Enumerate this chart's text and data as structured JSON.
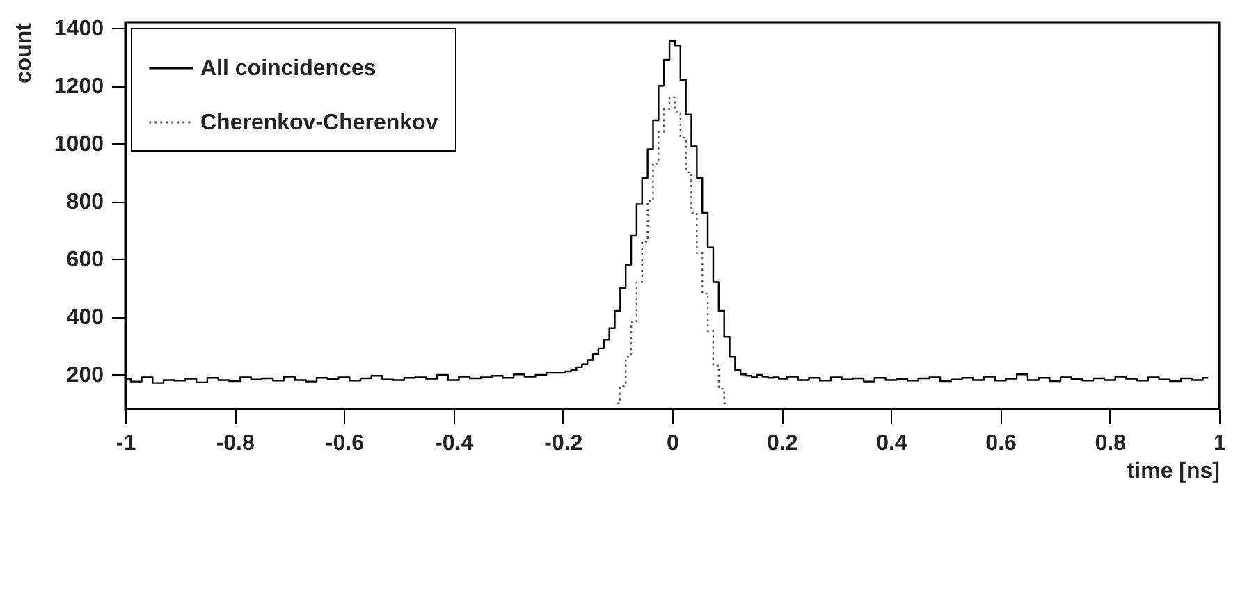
{
  "chart_data": {
    "type": "step",
    "xlabel": "time [ns]",
    "ylabel": "count",
    "xlim": [
      -1,
      1
    ],
    "ylim": [
      80,
      1420
    ],
    "xticks": [
      -1,
      -0.8,
      -0.6,
      -0.4,
      -0.2,
      0,
      0.2,
      0.4,
      0.6,
      0.8,
      1
    ],
    "yticks": [
      200,
      400,
      600,
      800,
      1000,
      1200,
      1400
    ],
    "grid": false,
    "legend": "top left",
    "marker": "none",
    "series": [
      {
        "name": "All coincidences",
        "color": "#000000",
        "line_style": "solid",
        "x": [
          -1,
          -0.98,
          -0.96,
          -0.94,
          -0.92,
          -0.9,
          -0.88,
          -0.86,
          -0.84,
          -0.82,
          -0.8,
          -0.78,
          -0.76,
          -0.74,
          -0.72,
          -0.7,
          -0.68,
          -0.66,
          -0.64,
          -0.62,
          -0.6,
          -0.58,
          -0.56,
          -0.54,
          -0.52,
          -0.5,
          -0.48,
          -0.46,
          -0.44,
          -0.42,
          -0.4,
          -0.38,
          -0.36,
          -0.34,
          -0.32,
          -0.3,
          -0.28,
          -0.26,
          -0.24,
          -0.22,
          -0.2,
          -0.19,
          -0.18,
          -0.17,
          -0.16,
          -0.15,
          -0.14,
          -0.13,
          -0.12,
          -0.11,
          -0.1,
          -0.09,
          -0.08,
          -0.07,
          -0.06,
          -0.05,
          -0.04,
          -0.03,
          -0.02,
          -0.01,
          0,
          0.01,
          0.02,
          0.03,
          0.04,
          0.05,
          0.06,
          0.07,
          0.08,
          0.09,
          0.1,
          0.11,
          0.12,
          0.13,
          0.14,
          0.15,
          0.16,
          0.17,
          0.18,
          0.19,
          0.2,
          0.22,
          0.24,
          0.26,
          0.28,
          0.3,
          0.32,
          0.34,
          0.36,
          0.38,
          0.4,
          0.42,
          0.44,
          0.46,
          0.48,
          0.5,
          0.52,
          0.54,
          0.56,
          0.58,
          0.6,
          0.62,
          0.64,
          0.66,
          0.68,
          0.7,
          0.72,
          0.74,
          0.76,
          0.78,
          0.8,
          0.82,
          0.84,
          0.86,
          0.88,
          0.9,
          0.92,
          0.94,
          0.96,
          0.98
        ],
        "values": [
          185,
          175,
          190,
          170,
          180,
          178,
          185,
          172,
          188,
          180,
          176,
          190,
          182,
          186,
          178,
          192,
          180,
          175,
          188,
          184,
          190,
          178,
          186,
          195,
          182,
          180,
          188,
          190,
          185,
          198,
          180,
          192,
          186,
          190,
          195,
          188,
          200,
          192,
          198,
          205,
          205,
          210,
          215,
          225,
          235,
          250,
          270,
          290,
          320,
          360,
          420,
          500,
          580,
          680,
          790,
          880,
          980,
          1080,
          1200,
          1290,
          1355,
          1340,
          1220,
          1100,
          990,
          880,
          760,
          640,
          520,
          420,
          330,
          260,
          215,
          200,
          195,
          190,
          198,
          192,
          188,
          190,
          185,
          192,
          180,
          188,
          178,
          190,
          182,
          186,
          175,
          188,
          180,
          184,
          178,
          186,
          190,
          176,
          182,
          188,
          180,
          192,
          178,
          185,
          200,
          180,
          188,
          176,
          190,
          184,
          178,
          186,
          180,
          192,
          185,
          178,
          190,
          182,
          176,
          186,
          180,
          188
        ]
      },
      {
        "name": "Cherenkov-Cherenkov",
        "color": "#555555",
        "line_style": "dotted",
        "x": [
          -0.1,
          -0.09,
          -0.08,
          -0.07,
          -0.06,
          -0.05,
          -0.04,
          -0.03,
          -0.02,
          -0.01,
          0,
          0.01,
          0.02,
          0.03,
          0.04,
          0.05,
          0.06,
          0.07,
          0.08,
          0.09,
          0.1
        ],
        "values": [
          100,
          160,
          260,
          380,
          520,
          660,
          800,
          930,
          1040,
          1120,
          1160,
          1110,
          1020,
          900,
          760,
          620,
          480,
          350,
          230,
          150,
          100
        ]
      }
    ]
  }
}
